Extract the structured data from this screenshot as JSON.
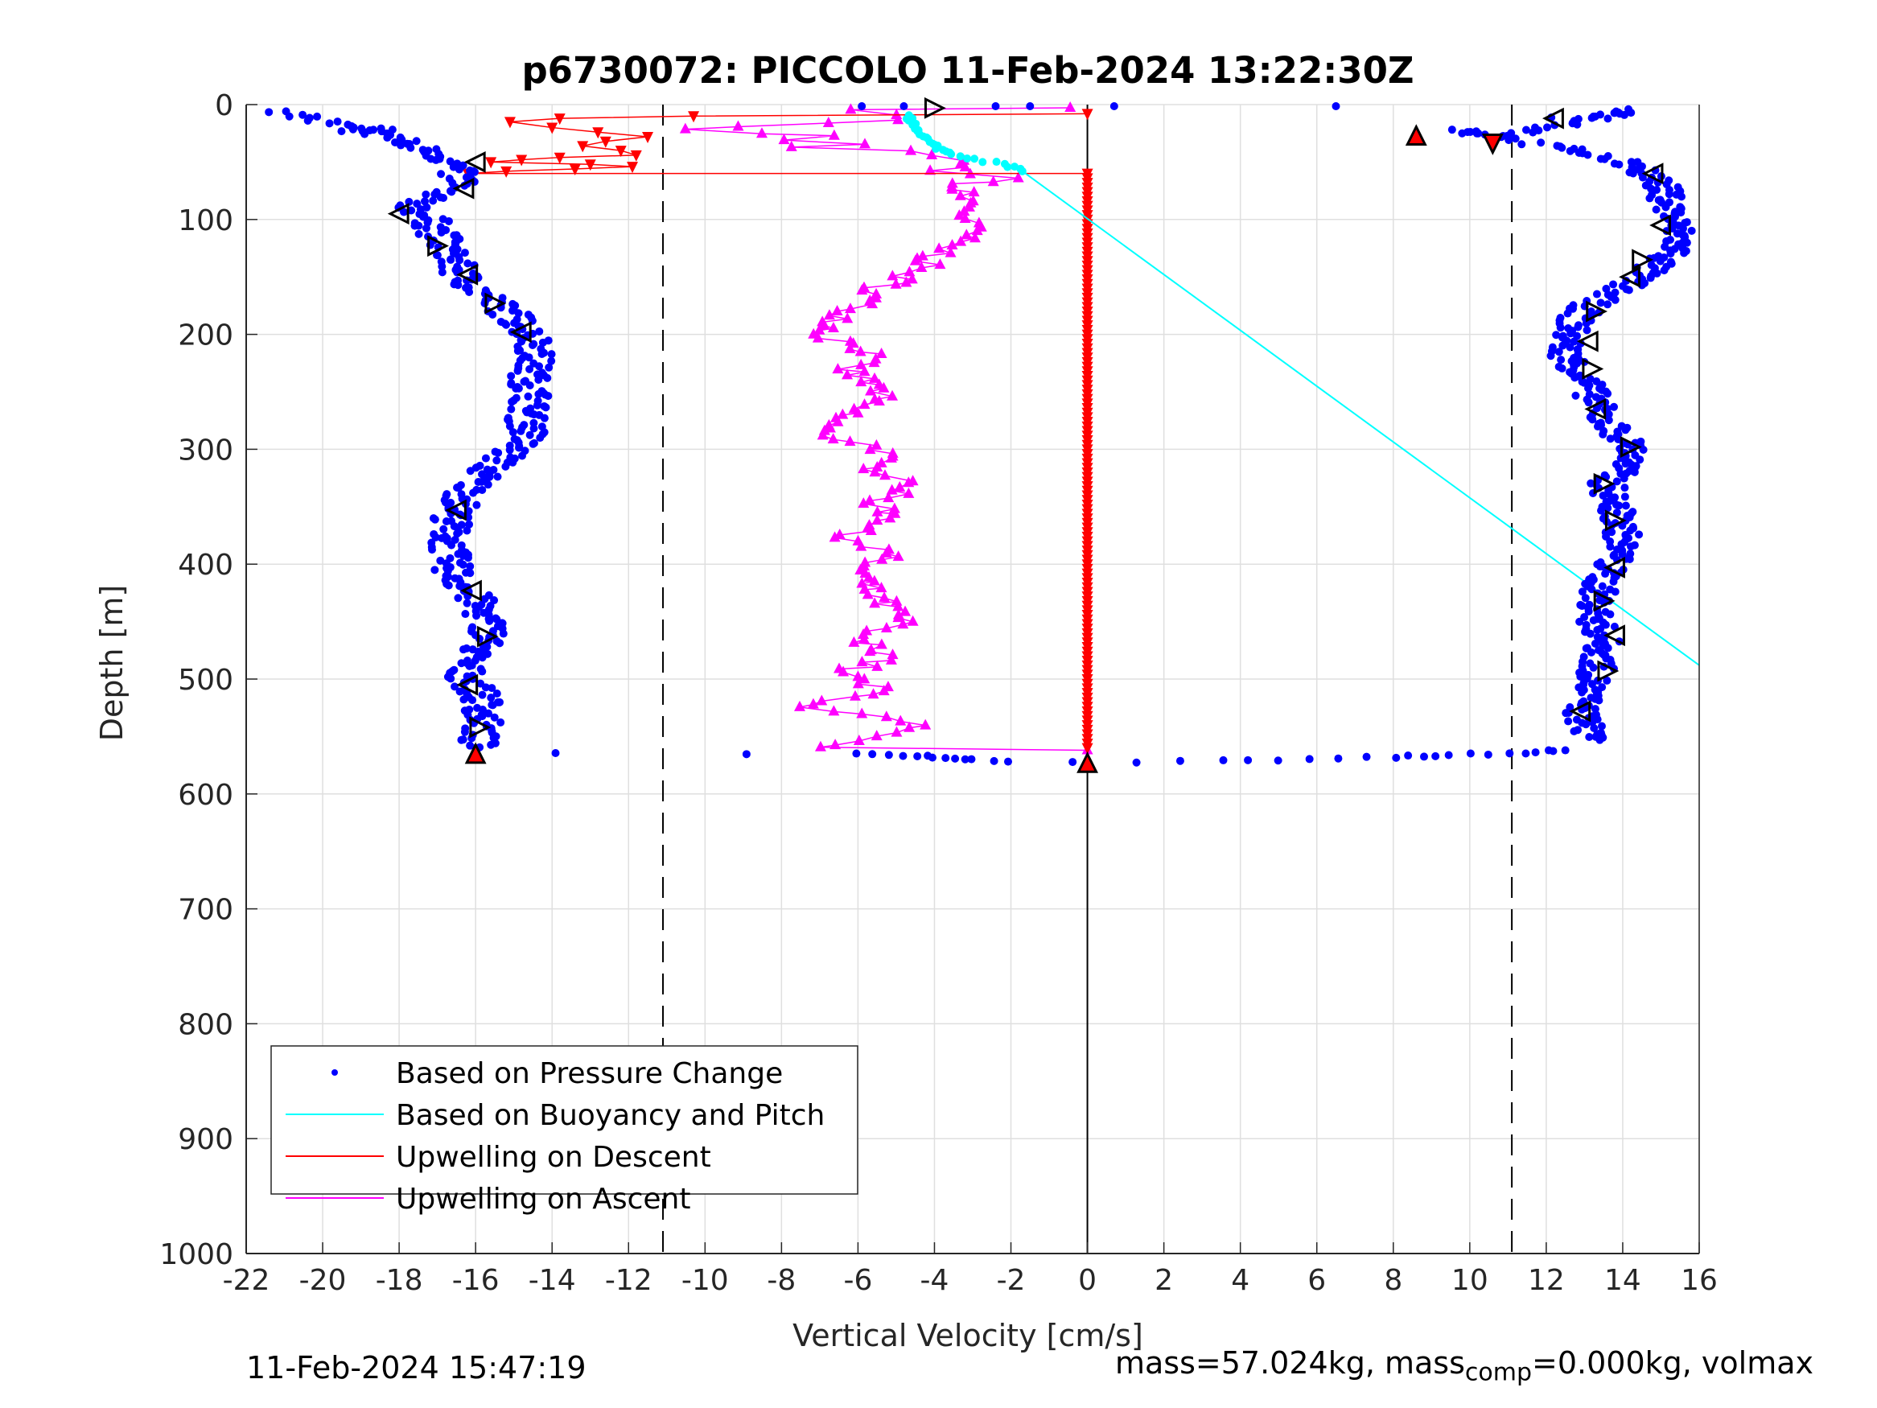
{
  "chart_data": {
    "type": "scatter",
    "title": "p6730072: PICCOLO 11-Feb-2024 13:22:30Z",
    "xlabel": "Vertical Velocity [cm/s]",
    "ylabel": "Depth [m]",
    "xlim": [
      -22,
      16
    ],
    "ylim": [
      0,
      1000
    ],
    "y_reversed": true,
    "grid": true,
    "legend_position": "bottom-left",
    "xticks": [
      "-22",
      "-20",
      "-18",
      "-16",
      "-14",
      "-12",
      "-10",
      "-8",
      "-6",
      "-4",
      "-2",
      "0",
      "2",
      "4",
      "6",
      "8",
      "10",
      "12",
      "14",
      "16"
    ],
    "yticks": [
      "0",
      "100",
      "200",
      "300",
      "400",
      "500",
      "600",
      "700",
      "800",
      "900",
      "1000"
    ],
    "reference_lines": {
      "dashed_x": [
        -11.1,
        11.1
      ],
      "solid_x": [
        0
      ]
    },
    "colors": {
      "pressure": "#0000ff",
      "buoyancy": "#00ffff",
      "descent": "#ff0000",
      "ascent": "#ff00ff",
      "marker_outline": "#000000"
    },
    "series": [
      {
        "name": "Based on Pressure Change",
        "style": "dots",
        "color": "#0000ff",
        "profile_descent": [
          [
            -21.1,
            6
          ],
          [
            -19.5,
            18
          ],
          [
            -19.2,
            25
          ],
          [
            -18.6,
            20
          ],
          [
            -17.8,
            35
          ],
          [
            -17.0,
            42
          ],
          [
            -16.6,
            50
          ],
          [
            -16.5,
            62
          ],
          [
            -16.3,
            68
          ],
          [
            -17.2,
            78
          ],
          [
            -17.6,
            90
          ],
          [
            -17.2,
            100
          ],
          [
            -17.0,
            112
          ],
          [
            -16.8,
            122
          ],
          [
            -16.6,
            135
          ],
          [
            -16.4,
            148
          ],
          [
            -16.0,
            160
          ],
          [
            -15.5,
            172
          ],
          [
            -15.0,
            185
          ],
          [
            -14.6,
            198
          ],
          [
            -14.4,
            210
          ],
          [
            -14.5,
            225
          ],
          [
            -14.6,
            240
          ],
          [
            -14.5,
            255
          ],
          [
            -14.7,
            270
          ],
          [
            -14.6,
            285
          ],
          [
            -14.9,
            298
          ],
          [
            -15.4,
            310
          ],
          [
            -15.8,
            322
          ],
          [
            -16.2,
            335
          ],
          [
            -16.4,
            348
          ],
          [
            -16.6,
            360
          ],
          [
            -16.7,
            375
          ],
          [
            -16.7,
            390
          ],
          [
            -16.6,
            405
          ],
          [
            -16.3,
            420
          ],
          [
            -16.0,
            432
          ],
          [
            -15.8,
            445
          ],
          [
            -15.6,
            458
          ],
          [
            -15.8,
            470
          ],
          [
            -16.2,
            482
          ],
          [
            -16.3,
            495
          ],
          [
            -16.0,
            508
          ],
          [
            -15.8,
            520
          ],
          [
            -15.8,
            535
          ],
          [
            -15.9,
            548
          ],
          [
            -16.0,
            560
          ]
        ],
        "profile_ascent": [
          [
            12.4,
            12
          ],
          [
            13.5,
            8
          ],
          [
            14.4,
            5
          ],
          [
            11.0,
            28
          ],
          [
            9.8,
            22
          ],
          [
            13.0,
            42
          ],
          [
            14.5,
            55
          ],
          [
            15.0,
            70
          ],
          [
            15.2,
            85
          ],
          [
            15.3,
            100
          ],
          [
            15.5,
            115
          ],
          [
            15.3,
            130
          ],
          [
            14.6,
            145
          ],
          [
            14.0,
            160
          ],
          [
            13.2,
            172
          ],
          [
            12.8,
            185
          ],
          [
            12.6,
            200
          ],
          [
            12.5,
            215
          ],
          [
            12.8,
            230
          ],
          [
            13.1,
            245
          ],
          [
            13.3,
            260
          ],
          [
            13.5,
            275
          ],
          [
            14.0,
            290
          ],
          [
            14.3,
            300
          ],
          [
            14.0,
            315
          ],
          [
            13.6,
            330
          ],
          [
            13.7,
            345
          ],
          [
            13.9,
            360
          ],
          [
            14.0,
            375
          ],
          [
            13.9,
            390
          ],
          [
            13.6,
            405
          ],
          [
            13.4,
            420
          ],
          [
            13.3,
            435
          ],
          [
            13.3,
            450
          ],
          [
            13.5,
            465
          ],
          [
            13.4,
            480
          ],
          [
            13.3,
            495
          ],
          [
            13.1,
            510
          ],
          [
            12.9,
            525
          ],
          [
            13.0,
            540
          ],
          [
            13.4,
            553
          ]
        ],
        "bottom_transition": [
          [
            -13.9,
            565
          ],
          [
            -8.9,
            565
          ],
          [
            -6.0,
            565
          ],
          [
            -4.5,
            567
          ],
          [
            -3.0,
            570
          ],
          [
            -2.0,
            571
          ],
          [
            1.3,
            572
          ],
          [
            3.5,
            571
          ],
          [
            5.0,
            570
          ],
          [
            6.5,
            569
          ],
          [
            8.0,
            568
          ],
          [
            9.5,
            566
          ],
          [
            10.5,
            565
          ],
          [
            11.5,
            564
          ],
          [
            12.5,
            562
          ]
        ],
        "surface": [
          [
            -5.9,
            0
          ],
          [
            -4.8,
            0
          ],
          [
            -2.4,
            0
          ],
          [
            -1.5,
            0
          ],
          [
            0.7,
            0
          ],
          [
            6.5,
            0
          ]
        ]
      },
      {
        "name": "Based on Buoyancy and Pitch",
        "style": "line",
        "color": "#00ffff",
        "near_surface_points": [
          [
            -4.7,
            10
          ],
          [
            -4.5,
            20
          ],
          [
            -4.2,
            30
          ],
          [
            -3.9,
            38
          ],
          [
            -3.5,
            44
          ],
          [
            -2.9,
            48
          ],
          [
            -2.2,
            52
          ],
          [
            -1.7,
            58
          ]
        ],
        "line": [
          [
            -1.7,
            58
          ],
          [
            16.0,
            488
          ]
        ]
      },
      {
        "name": "Upwelling on Descent",
        "style": "line-markers",
        "marker": "down-triangle",
        "color": "#ff0000",
        "x": [
          0.0,
          -10.3,
          -13.8,
          -15.1,
          -14.0,
          -12.8,
          -11.5,
          -12.6,
          -13.2,
          -12.2,
          -11.8,
          -13.8,
          -14.8,
          -15.6,
          -13.0,
          -11.9,
          -13.4,
          -15.2,
          -16.2,
          0.0,
          0.0
        ],
        "y": [
          8,
          10,
          12,
          15,
          20,
          24,
          28,
          32,
          36,
          40,
          44,
          46,
          48,
          50,
          52,
          54,
          56,
          58,
          60,
          60,
          562
        ]
      },
      {
        "name": "Upwelling on Ascent",
        "style": "line-markers",
        "marker": "up-triangle",
        "color": "#ff00ff",
        "x": [
          0.0,
          -6.0,
          -5.2,
          -4.8,
          -7.0,
          -9.3,
          -10.8,
          -8.4,
          -6.8,
          -8.1,
          -6.2,
          -7.4,
          -5.0,
          -4.2,
          -3.6,
          -3.2,
          -3.8,
          -2.2,
          -3.6,
          -3.2,
          -3.0,
          -3.3,
          -3.0,
          -3.5,
          -4.3,
          -5.4,
          -6.2,
          -6.9,
          -5.6,
          -6.3,
          -5.4,
          -6.1,
          -7.1,
          -5.3,
          -5.7,
          -4.4,
          -5.6,
          -4.9,
          -6.4,
          -5.2,
          -6.0,
          -5.8,
          -5.3,
          -4.9,
          -6.2,
          -5.0,
          -6.5,
          -5.4,
          -7.3,
          -4.5,
          -5.8,
          -7.3,
          0.0
        ],
        "y": [
          2,
          5,
          9,
          13,
          16,
          19,
          22,
          25,
          28,
          31,
          34,
          37,
          40,
          44,
          48,
          52,
          58,
          64,
          72,
          80,
          90,
          100,
          110,
          120,
          140,
          160,
          180,
          200,
          215,
          230,
          250,
          265,
          285,
          300,
          315,
          330,
          345,
          360,
          375,
          390,
          405,
          420,
          435,
          450,
          465,
          480,
          495,
          510,
          525,
          540,
          550,
          560,
          562
        ]
      },
      {
        "name": "markers",
        "style": "open-triangles",
        "color": "#000000",
        "points": [
          [
            -4.0,
            3,
            "right"
          ],
          [
            12.2,
            12,
            "left"
          ],
          [
            8.6,
            27,
            "up"
          ],
          [
            10.6,
            34,
            "down"
          ],
          [
            -16.0,
            50,
            "left"
          ],
          [
            -16.3,
            73,
            "left"
          ],
          [
            -18.0,
            95,
            "left"
          ],
          [
            -17.0,
            123,
            "right"
          ],
          [
            -16.2,
            148,
            "left"
          ],
          [
            -15.5,
            173,
            "right"
          ],
          [
            -14.8,
            198,
            "left"
          ],
          [
            -16.5,
            353,
            "left"
          ],
          [
            -16.1,
            423,
            "left"
          ],
          [
            -15.7,
            463,
            "right"
          ],
          [
            -16.2,
            505,
            "left"
          ],
          [
            -15.9,
            542,
            "right"
          ],
          [
            -16.0,
            565,
            "up"
          ],
          [
            0.0,
            573,
            "up"
          ],
          [
            14.8,
            60,
            "left"
          ],
          [
            15.0,
            105,
            "left"
          ],
          [
            14.5,
            135,
            "right"
          ],
          [
            14.2,
            150,
            "left"
          ],
          [
            13.3,
            180,
            "right"
          ],
          [
            13.1,
            206,
            "left"
          ],
          [
            13.2,
            230,
            "right"
          ],
          [
            13.3,
            265,
            "left"
          ],
          [
            14.2,
            298,
            "right"
          ],
          [
            13.5,
            330,
            "right"
          ],
          [
            13.8,
            362,
            "right"
          ],
          [
            13.8,
            403,
            "left"
          ],
          [
            13.5,
            432,
            "right"
          ],
          [
            13.8,
            462,
            "left"
          ],
          [
            13.6,
            493,
            "right"
          ],
          [
            12.9,
            528,
            "left"
          ]
        ]
      }
    ],
    "legend": [
      "Based on Pressure Change",
      "Based on Buoyancy and Pitch",
      "Upwelling on Descent",
      "Upwelling on Ascent"
    ]
  },
  "footer": {
    "timestamp": "11-Feb-2024 15:47:19",
    "mass_text": "mass=57.024kg, mass",
    "mass_sub": "comp",
    "mass_rest": "=0.000kg, volmax"
  }
}
